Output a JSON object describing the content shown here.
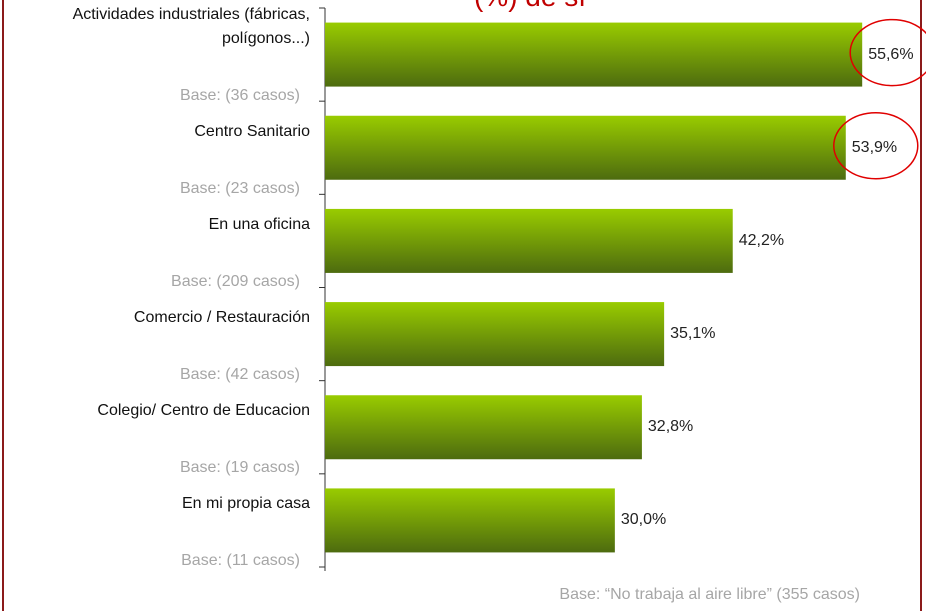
{
  "chart_data": {
    "type": "barh",
    "title": "(%) de sí",
    "categories": [
      "Actividades industriales (fábricas, polígonos...)",
      "Centro Sanitario",
      "En una oficina",
      "Comercio / Restauración",
      "Colegio/ Centro de Educacion",
      "En mi propia casa"
    ],
    "bases": [
      "Base: (36 casos)",
      "Base: (23 casos)",
      "Base: (209 casos)",
      "Base: (42 casos)",
      "Base: (19 casos)",
      "Base: (11 casos)"
    ],
    "values": [
      55.6,
      53.9,
      42.2,
      35.1,
      32.8,
      30.0
    ],
    "value_labels": [
      "55,6%",
      "53,9%",
      "42,2%",
      "35,1%",
      "32,8%",
      "30,0%"
    ],
    "xlim": [
      0,
      62.1
    ],
    "color": [
      "#99cc00",
      "#4d6b0f"
    ],
    "footnote": "Base: “No trabaja al aire libre”  (355 casos)"
  }
}
